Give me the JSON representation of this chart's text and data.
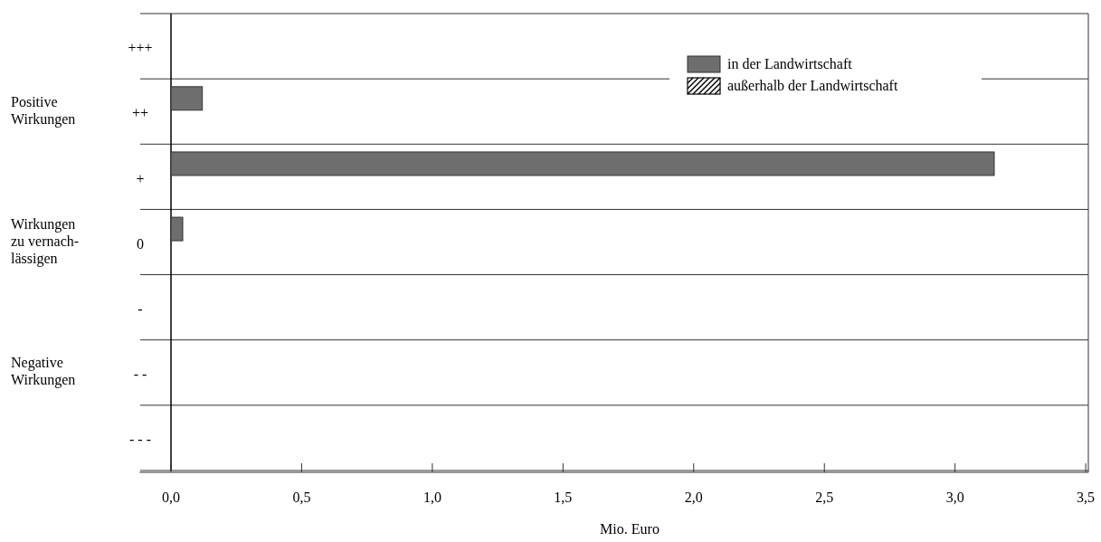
{
  "chart_data": {
    "type": "bar",
    "orientation": "horizontal",
    "categories": [
      "+++",
      "++",
      "+",
      "0",
      "-",
      "- -",
      "- - -"
    ],
    "series": [
      {
        "name": "in der Landwirtschaft",
        "color": "#6e6e6e",
        "values": [
          null,
          0.12,
          3.15,
          0.045,
          null,
          null,
          null
        ]
      },
      {
        "name": "außerhalb der Landwirtschaft",
        "color": "#000000",
        "values": [
          null,
          null,
          null,
          null,
          null,
          null,
          null
        ]
      }
    ],
    "xlim": [
      -0.12,
      3.51
    ],
    "xticks": [
      {
        "value": 0,
        "label": "0,0"
      },
      {
        "value": 0.5,
        "label": "0,5"
      },
      {
        "value": 1,
        "label": "1,0"
      },
      {
        "value": 1.5,
        "label": "1,5"
      },
      {
        "value": 2,
        "label": "2,0"
      },
      {
        "value": 2.5,
        "label": "2,5"
      },
      {
        "value": 3,
        "label": "3,0"
      },
      {
        "value": 3.5,
        "label": "3,5"
      }
    ],
    "xlabel": "Mio. Euro",
    "grid": "y",
    "legend": "top right",
    "annotations": [
      "Positive\nWirkungen",
      "Wirkungen\nzu vernach-\nlässigen",
      "Negative\nWirkungen"
    ]
  }
}
